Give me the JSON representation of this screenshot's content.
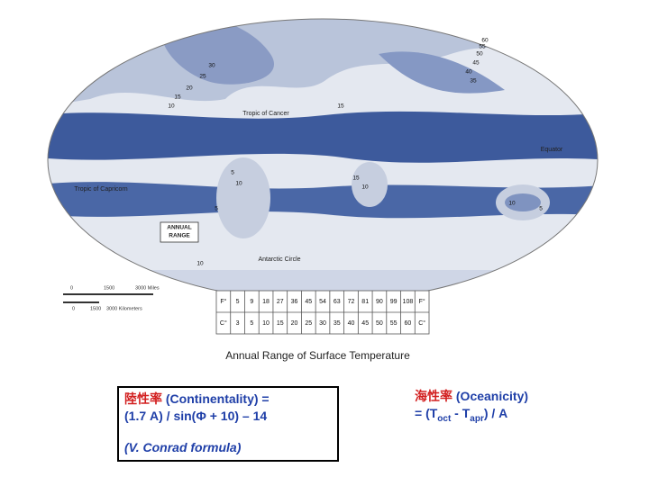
{
  "map": {
    "place_labels": [
      "Tropic of Cancer",
      "Equator",
      "Tropic of Capricorn",
      "Antarctic Circle"
    ],
    "key_lines": [
      "ANNUAL",
      "RANGE"
    ],
    "contour_labels": [
      "10",
      "15",
      "20",
      "25",
      "30",
      "35",
      "40",
      "45",
      "50",
      "55",
      "60",
      "5",
      "10",
      "15",
      "10",
      "5",
      "10",
      "5",
      "15",
      "10"
    ],
    "scale": {
      "miles": [
        "0",
        "1500",
        "3000 Miles"
      ],
      "kilometers": [
        "0",
        "1500",
        "3000 Kilometers"
      ]
    },
    "legend_table": {
      "rows": [
        [
          "F°",
          5,
          9,
          18,
          27,
          36,
          45,
          54,
          63,
          72,
          81,
          90,
          99,
          108,
          "F°"
        ],
        [
          "C°",
          3,
          5,
          10,
          15,
          20,
          25,
          30,
          35,
          40,
          45,
          50,
          55,
          60,
          "C°"
        ]
      ]
    }
  },
  "caption": "Annual Range of Surface Temperature",
  "continentality": {
    "term": "陸性率",
    "text": "(Continentality) =",
    "formula": "(1.7 A) / sin(Φ + 10) – 14",
    "note": "(V. Conrad formula)"
  },
  "oceanicity": {
    "term": "海性率",
    "text": "(Oceanicity)",
    "formula": [
      "= (T",
      "oct",
      " - T",
      "apr",
      ") / A"
    ]
  }
}
